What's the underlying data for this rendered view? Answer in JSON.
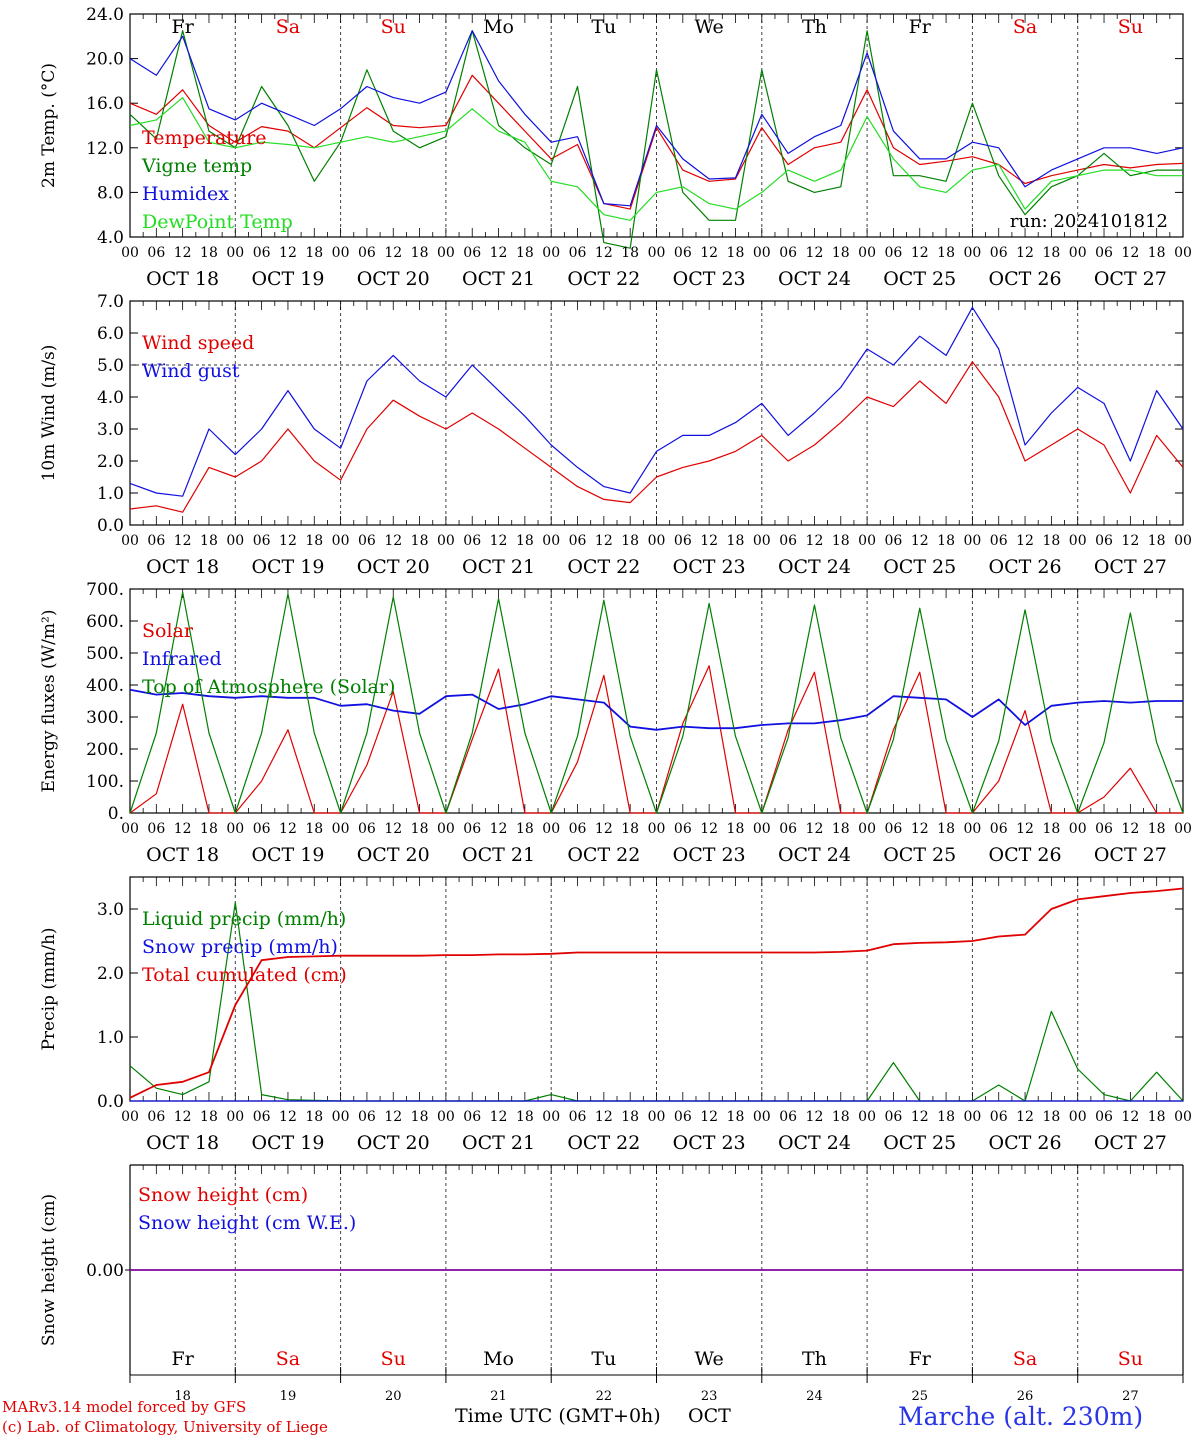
{
  "days_header": [
    {
      "label": "Fr",
      "color": "#000000"
    },
    {
      "label": "Sa",
      "color": "#e00000"
    },
    {
      "label": "Su",
      "color": "#e00000"
    },
    {
      "label": "Mo",
      "color": "#000000"
    },
    {
      "label": "Tu",
      "color": "#000000"
    },
    {
      "label": "We",
      "color": "#000000"
    },
    {
      "label": "Th",
      "color": "#000000"
    },
    {
      "label": "Fr",
      "color": "#000000"
    },
    {
      "label": "Sa",
      "color": "#e00000"
    },
    {
      "label": "Su",
      "color": "#e00000"
    }
  ],
  "date_labels": [
    "OCT 18",
    "OCT 19",
    "OCT 20",
    "OCT 21",
    "OCT 22",
    "OCT 23",
    "OCT 24",
    "OCT 25",
    "OCT 26",
    "OCT 27"
  ],
  "day_numbers": [
    "18",
    "19",
    "20",
    "21",
    "22",
    "23",
    "24",
    "25",
    "26",
    "27"
  ],
  "hour_ticks": [
    "00",
    "06",
    "12",
    "18"
  ],
  "final_hour_tick": "00",
  "footer": {
    "model_line": "MARv3.14 model forced by GFS",
    "copyright_line": "(c) Lab. of Climatology, University of Liege",
    "xlabel": "Time UTC (GMT+0h)",
    "month": "OCT",
    "station": "Marche (alt. 230m)"
  },
  "colors": {
    "red": "#e00000",
    "green": "#008000",
    "blue": "#1010e0",
    "lightgreen": "#22dd22",
    "purple": "#8000a0"
  },
  "chart_data": [
    {
      "type": "line",
      "ylabel": "2m Temp. (°C)",
      "ylim": [
        4,
        24
      ],
      "yticks": [
        "4.0",
        "8.0",
        "12.0",
        "16.0",
        "20.0",
        "24.0"
      ],
      "annotation": "run: 2024101812",
      "x_hours": [
        0,
        6,
        12,
        18,
        24,
        30,
        36,
        42,
        48,
        54,
        60,
        66,
        72,
        78,
        84,
        90,
        96,
        102,
        108,
        114,
        120,
        126,
        132,
        138,
        144,
        150,
        156,
        162,
        168,
        174,
        180,
        186,
        192,
        198,
        204,
        210,
        216,
        222,
        228,
        234,
        240
      ],
      "series": [
        {
          "name": "Temperature",
          "color": "#e00000",
          "values": [
            16.0,
            15.0,
            17.2,
            14.0,
            12.5,
            13.9,
            13.5,
            12.0,
            13.8,
            15.6,
            14.0,
            13.8,
            14.0,
            18.5,
            16.0,
            13.5,
            11.0,
            12.3,
            7.0,
            6.5,
            13.8,
            10.0,
            9.0,
            9.2,
            13.8,
            10.5,
            12.0,
            12.5,
            17.2,
            12.0,
            10.5,
            10.8,
            11.2,
            10.5,
            8.8,
            9.5,
            10.0,
            10.5,
            10.2,
            10.5,
            10.6
          ]
        },
        {
          "name": "Vigne temp",
          "color": "#008000",
          "values": [
            15.0,
            12.8,
            22.5,
            13.5,
            12.0,
            17.5,
            14.0,
            9.0,
            12.5,
            19.0,
            13.5,
            12.0,
            13.0,
            22.5,
            14.0,
            12.0,
            10.5,
            17.5,
            3.5,
            3.0,
            19.0,
            8.0,
            5.5,
            5.5,
            19.0,
            9.0,
            8.0,
            8.5,
            22.5,
            9.5,
            9.5,
            9.0,
            16.0,
            9.5,
            6.0,
            8.5,
            9.5,
            11.5,
            9.5,
            10.0,
            10.0
          ]
        },
        {
          "name": "Humidex",
          "color": "#1010e0",
          "values": [
            20.0,
            18.5,
            22.0,
            15.5,
            14.5,
            16.0,
            15.0,
            14.0,
            15.5,
            17.5,
            16.5,
            16.0,
            17.0,
            22.5,
            18.0,
            15.0,
            12.5,
            13.0,
            7.0,
            6.8,
            14.0,
            11.0,
            9.2,
            9.3,
            15.0,
            11.5,
            13.0,
            14.0,
            20.5,
            13.5,
            11.0,
            11.0,
            12.5,
            12.0,
            8.5,
            10.0,
            11.0,
            12.0,
            12.0,
            11.5,
            12.0
          ]
        },
        {
          "name": "DewPoint Temp",
          "color": "#22dd22",
          "values": [
            14.0,
            14.5,
            16.5,
            12.5,
            12.0,
            12.5,
            12.3,
            12.0,
            12.5,
            13.0,
            12.5,
            13.0,
            13.5,
            15.5,
            13.5,
            12.5,
            9.0,
            8.5,
            6.0,
            5.5,
            8.0,
            8.5,
            7.0,
            6.5,
            8.0,
            10.0,
            9.0,
            10.0,
            14.8,
            11.0,
            8.5,
            8.0,
            10.0,
            10.5,
            6.5,
            9.0,
            9.5,
            10.0,
            10.0,
            9.5,
            9.5
          ]
        }
      ]
    },
    {
      "type": "line",
      "ylabel": "10m Wind (m/s)",
      "ylim": [
        0,
        7
      ],
      "yticks": [
        "0.0",
        "1.0",
        "2.0",
        "3.0",
        "4.0",
        "5.0",
        "6.0",
        "7.0"
      ],
      "dashed_reference": 5.0,
      "x_hours": [
        0,
        6,
        12,
        18,
        24,
        30,
        36,
        42,
        48,
        54,
        60,
        66,
        72,
        78,
        84,
        90,
        96,
        102,
        108,
        114,
        120,
        126,
        132,
        138,
        144,
        150,
        156,
        162,
        168,
        174,
        180,
        186,
        192,
        198,
        204,
        210,
        216,
        222,
        228,
        234,
        240
      ],
      "series": [
        {
          "name": "Wind speed",
          "color": "#e00000",
          "values": [
            0.5,
            0.6,
            0.4,
            1.8,
            1.5,
            2.0,
            3.0,
            2.0,
            1.4,
            3.0,
            3.9,
            3.4,
            3.0,
            3.5,
            3.0,
            2.4,
            1.8,
            1.2,
            0.8,
            0.7,
            1.5,
            1.8,
            2.0,
            2.3,
            2.8,
            2.0,
            2.5,
            3.2,
            4.0,
            3.7,
            4.5,
            3.8,
            5.1,
            4.0,
            2.0,
            2.5,
            3.0,
            2.5,
            1.0,
            2.8,
            1.8
          ]
        },
        {
          "name": "Wind gust",
          "color": "#1010e0",
          "values": [
            1.3,
            1.0,
            0.9,
            3.0,
            2.2,
            3.0,
            4.2,
            3.0,
            2.4,
            4.5,
            5.3,
            4.5,
            4.0,
            5.0,
            4.2,
            3.4,
            2.5,
            1.8,
            1.2,
            1.0,
            2.3,
            2.8,
            2.8,
            3.2,
            3.8,
            2.8,
            3.5,
            4.3,
            5.5,
            5.0,
            5.9,
            5.3,
            6.8,
            5.5,
            2.5,
            3.5,
            4.3,
            3.8,
            2.0,
            4.2,
            3.0
          ]
        }
      ]
    },
    {
      "type": "line",
      "ylabel": "Energy fluxes (W/m²)",
      "ylim": [
        0,
        700
      ],
      "yticks": [
        "0.",
        "100.",
        "200.",
        "300.",
        "400.",
        "500.",
        "600.",
        "700."
      ],
      "x_hours": [
        0,
        6,
        12,
        18,
        24,
        30,
        36,
        42,
        48,
        54,
        60,
        66,
        72,
        78,
        84,
        90,
        96,
        102,
        108,
        114,
        120,
        126,
        132,
        138,
        144,
        150,
        156,
        162,
        168,
        174,
        180,
        186,
        192,
        198,
        204,
        210,
        216,
        222,
        228,
        234,
        240
      ],
      "series": [
        {
          "name": "Solar",
          "color": "#e00000",
          "values": [
            0,
            60,
            340,
            0,
            0,
            100,
            260,
            0,
            0,
            150,
            380,
            0,
            0,
            230,
            450,
            0,
            0,
            160,
            430,
            0,
            0,
            280,
            460,
            0,
            0,
            260,
            440,
            0,
            0,
            260,
            440,
            0,
            0,
            100,
            320,
            0,
            0,
            50,
            140,
            0,
            0
          ]
        },
        {
          "name": "Infrared",
          "color": "#1010e0",
          "values": [
            385,
            370,
            375,
            365,
            360,
            365,
            360,
            360,
            335,
            340,
            320,
            310,
            365,
            370,
            325,
            340,
            365,
            355,
            345,
            270,
            260,
            270,
            265,
            265,
            275,
            280,
            280,
            290,
            305,
            365,
            360,
            355,
            300,
            355,
            275,
            335,
            345,
            350,
            345,
            350,
            350
          ]
        },
        {
          "name": "Top of Atmosphere (Solar)",
          "color": "#008000",
          "values": [
            0,
            250,
            690,
            250,
            0,
            250,
            685,
            250,
            0,
            250,
            675,
            250,
            0,
            250,
            670,
            250,
            0,
            240,
            665,
            240,
            0,
            240,
            655,
            240,
            0,
            235,
            650,
            235,
            0,
            230,
            640,
            230,
            0,
            225,
            635,
            225,
            0,
            220,
            625,
            220,
            0
          ]
        }
      ]
    },
    {
      "type": "line",
      "ylabel": "Precip (mm/h)",
      "ylim": [
        0,
        3.5
      ],
      "yticks": [
        "0.0",
        "1.0",
        "2.0",
        "3.0"
      ],
      "x_hours": [
        0,
        6,
        12,
        18,
        24,
        30,
        36,
        42,
        48,
        54,
        60,
        66,
        72,
        78,
        84,
        90,
        96,
        102,
        108,
        114,
        120,
        126,
        132,
        138,
        144,
        150,
        156,
        162,
        168,
        174,
        180,
        186,
        192,
        198,
        204,
        210,
        216,
        222,
        228,
        234,
        240
      ],
      "series": [
        {
          "name": "Liquid precip (mm/h)",
          "color": "#008000",
          "values": [
            0.55,
            0.2,
            0.1,
            0.3,
            3.1,
            0.1,
            0.02,
            0.01,
            0.0,
            0.0,
            0.0,
            0.0,
            0.0,
            0.0,
            0.0,
            0.0,
            0.1,
            0.0,
            0.0,
            0.0,
            0.0,
            0.0,
            0.0,
            0.0,
            0.0,
            0.0,
            0.0,
            0.0,
            0.0,
            0.6,
            0.0,
            0.0,
            0.0,
            0.25,
            0.0,
            1.4,
            0.5,
            0.1,
            0.0,
            0.45,
            0.0
          ]
        },
        {
          "name": "Snow precip (mm/h)",
          "color": "#1010e0",
          "values": [
            0,
            0,
            0,
            0,
            0,
            0,
            0,
            0,
            0,
            0,
            0,
            0,
            0,
            0,
            0,
            0,
            0,
            0,
            0,
            0,
            0,
            0,
            0,
            0,
            0,
            0,
            0,
            0,
            0,
            0,
            0,
            0,
            0,
            0,
            0,
            0,
            0,
            0,
            0,
            0,
            0
          ]
        },
        {
          "name": "Total cumulated (cm)",
          "color": "#e00000",
          "values": [
            0.05,
            0.25,
            0.3,
            0.45,
            1.5,
            2.2,
            2.25,
            2.26,
            2.27,
            2.27,
            2.27,
            2.27,
            2.28,
            2.28,
            2.29,
            2.29,
            2.3,
            2.32,
            2.32,
            2.32,
            2.32,
            2.32,
            2.32,
            2.32,
            2.32,
            2.32,
            2.32,
            2.33,
            2.35,
            2.45,
            2.47,
            2.48,
            2.5,
            2.57,
            2.6,
            3.0,
            3.15,
            3.2,
            3.25,
            3.28,
            3.32
          ]
        }
      ]
    },
    {
      "type": "line",
      "ylabel": "Snow height (cm)",
      "ylim": [
        -1,
        1
      ],
      "yticks": [
        "0.00"
      ],
      "x_hours": [
        0,
        240
      ],
      "series": [
        {
          "name": "Snow height (cm)",
          "color": "#e00000",
          "values": [
            0,
            0
          ]
        },
        {
          "name": "Snow height (cm W.E.)",
          "color": "#1010e0",
          "values": [
            0,
            0
          ]
        }
      ]
    }
  ]
}
